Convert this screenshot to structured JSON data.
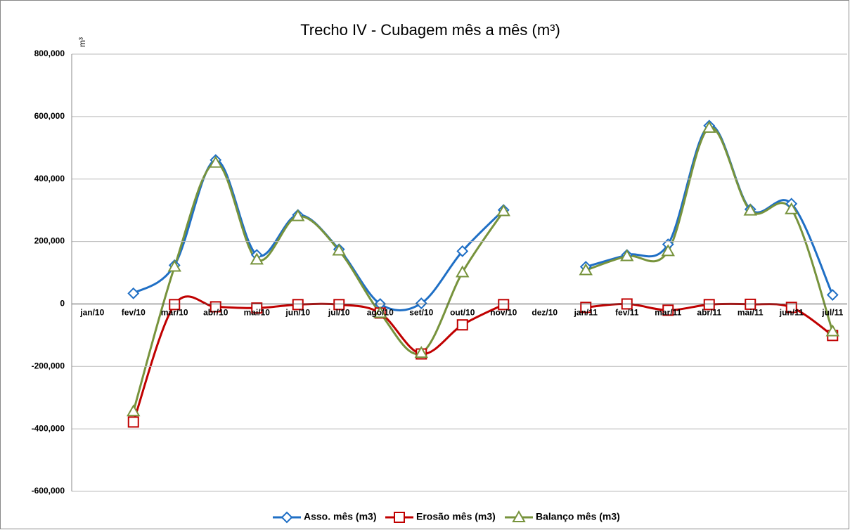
{
  "chart_data": {
    "type": "line",
    "title": "Trecho IV - Cubagem mês a mês (m³)",
    "y_label": "m³",
    "categories": [
      "jan/10",
      "fev/10",
      "mar/10",
      "abr/10",
      "mai/10",
      "jun/10",
      "jul/10",
      "ago/10",
      "set/10",
      "out/10",
      "nov/10",
      "dez/10",
      "jan/11",
      "fev/11",
      "mar/11",
      "abr/11",
      "mai/11",
      "jun/11",
      "jul/11"
    ],
    "series": [
      {
        "name": "Asso. mês (m3)",
        "color": "#1f6fc5",
        "marker": "diamond",
        "values": [
          null,
          34000,
          124000,
          461000,
          157000,
          285000,
          175000,
          0,
          2000,
          169000,
          301000,
          null,
          119000,
          157000,
          191000,
          571000,
          303000,
          321000,
          29000
        ]
      },
      {
        "name": "Erosão mês (m3)",
        "color": "#c00000",
        "marker": "square",
        "values": [
          null,
          -378000,
          -2000,
          -9000,
          -13000,
          -2000,
          -2000,
          -29000,
          -160000,
          -67000,
          -2000,
          null,
          -11000,
          0,
          -20000,
          -2000,
          -1000,
          -11000,
          -101000
        ]
      },
      {
        "name": "Balanço mês (m3)",
        "color": "#77933c",
        "marker": "triangle",
        "values": [
          null,
          -344000,
          119000,
          452000,
          142000,
          281000,
          171000,
          -29000,
          -157000,
          101000,
          297000,
          null,
          108000,
          153000,
          169000,
          564000,
          299000,
          303000,
          -88000
        ]
      }
    ],
    "ylim": [
      -600000,
      800000
    ],
    "yticks": [
      {
        "value": -600000,
        "label": "-600,000"
      },
      {
        "value": -400000,
        "label": "-400,000"
      },
      {
        "value": -200000,
        "label": "-200,000"
      },
      0,
      {
        "value": 200000,
        "label": "200,000"
      },
      {
        "value": 400000,
        "label": "400,000"
      },
      {
        "value": 600000,
        "label": "600,000"
      },
      {
        "value": 800000,
        "label": "800,000"
      }
    ],
    "grid": true,
    "smooth": true,
    "legend": "bottom"
  }
}
